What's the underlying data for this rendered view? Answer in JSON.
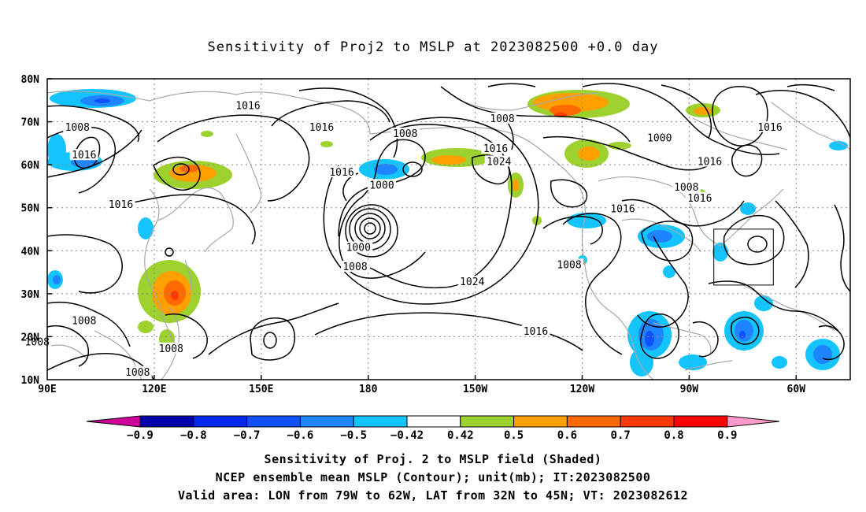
{
  "title": "Sensitivity of Proj2 to MSLP at 2023082500 +0.0 day",
  "lat_labels": [
    "80N",
    "70N",
    "60N",
    "50N",
    "40N",
    "30N",
    "20N",
    "10N"
  ],
  "lon_labels": [
    "90E",
    "120E",
    "150E",
    "180",
    "150W",
    "120W",
    "90W",
    "60W"
  ],
  "contour_labels": [
    {
      "text": "1016",
      "lon": 150,
      "lat": 73.5
    },
    {
      "text": "1008",
      "lon": 99,
      "lat": 68.5
    },
    {
      "text": "1016",
      "lon": 172,
      "lat": 68.5
    },
    {
      "text": "1016",
      "lon": 101,
      "lat": 62
    },
    {
      "text": "1016",
      "lon": 178,
      "lat": 58
    },
    {
      "text": "1008",
      "lon": 197,
      "lat": 67
    },
    {
      "text": "1008",
      "lon": 226,
      "lat": 70.5
    },
    {
      "text": "1016",
      "lon": 224,
      "lat": 63.5
    },
    {
      "text": "1024",
      "lon": 225,
      "lat": 60.5
    },
    {
      "text": "1000",
      "lon": 190,
      "lat": 55
    },
    {
      "text": "1016",
      "lon": 112,
      "lat": 50.5
    },
    {
      "text": "1016",
      "lon": 262,
      "lat": 49.5
    },
    {
      "text": "1000",
      "lon": 273,
      "lat": 66
    },
    {
      "text": "1016",
      "lon": 288,
      "lat": 60.5
    },
    {
      "text": "1008",
      "lon": 281,
      "lat": 54.5
    },
    {
      "text": "1016",
      "lon": 285,
      "lat": 52
    },
    {
      "text": "1016",
      "lon": 306,
      "lat": 68.5
    },
    {
      "text": "1000",
      "lon": 183,
      "lat": 40.5
    },
    {
      "text": "1008",
      "lon": 182,
      "lat": 36
    },
    {
      "text": "1024",
      "lon": 217,
      "lat": 32.5
    },
    {
      "text": "1008",
      "lon": 246,
      "lat": 36.5
    },
    {
      "text": "1016",
      "lon": 236,
      "lat": 21
    },
    {
      "text": "1008",
      "lon": 101,
      "lat": 23.5
    },
    {
      "text": "1008",
      "lon": 87,
      "lat": 18.5
    },
    {
      "text": "1008",
      "lon": 127,
      "lat": 17
    },
    {
      "text": "1008",
      "lon": 117,
      "lat": 11.5
    }
  ],
  "valid_box": {
    "lon_from": 281,
    "lon_to": 298,
    "lat_from": 32,
    "lat_to": 45
  },
  "colorbar": {
    "labels": [
      "−0.9",
      "−0.8",
      "−0.7",
      "−0.6",
      "−0.5",
      "−0.42",
      "0.42",
      "0.5",
      "0.6",
      "0.7",
      "0.8",
      "0.9"
    ],
    "colors": [
      "#0000a8",
      "#0528ef",
      "#0f50ff",
      "#1f84ff",
      "#13c4ff",
      "#ffffff",
      "#9dd12f",
      "#ff9f00",
      "#ff6a00",
      "#ff3a00",
      "#ff0000"
    ],
    "low_end_color": "#cc0099",
    "high_end_color": "#ff99cc"
  },
  "caption": {
    "line1": "Sensitivity of Proj. 2 to MSLP field (Shaded)",
    "line2": "NCEP ensemble mean MSLP (Contour); unit(mb); IT:2023082500",
    "line3": "Valid area: LON from 79W to 62W, LAT from 32N to 45N; VT: 2023082612"
  }
}
